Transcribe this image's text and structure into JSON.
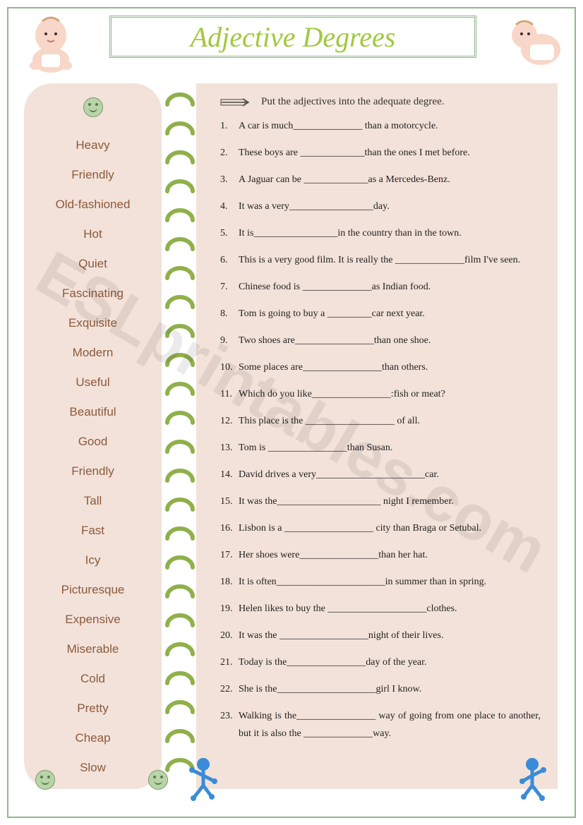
{
  "title": "Adjective Degrees",
  "colors": {
    "title": "#a0c93e",
    "border": "#8fb88a",
    "panel_bg": "#f3e2d9",
    "adj_text": "#8b5a3c",
    "ring": "#8fb04a"
  },
  "adjectives": [
    "Heavy",
    "Friendly",
    "Old-fashioned",
    "Hot",
    "Quiet",
    "Fascinating",
    "Exquisite",
    "Modern",
    "Useful",
    "Beautiful",
    "Good",
    "Friendly",
    "Tall",
    "Fast",
    "Icy",
    "Picturesque",
    "Expensive",
    "Miserable",
    "Cold",
    "Pretty",
    "Cheap",
    "Slow"
  ],
  "instruction": "Put the adjectives into the adequate degree.",
  "questions": [
    "A car is much______________ than a motorcycle.",
    "These boys are _____________than the ones I met before.",
    "A Jaguar can be _____________as a Mercedes-Benz.",
    "It was a very_________________day.",
    "It is_________________in the country than in the town.",
    "This is a very good film. It is really the ______________film I've seen.",
    "Chinese food is ______________as Indian food.",
    "Tom is going to buy a _________car next year.",
    "Two shoes are________________than one shoe.",
    "Some places are________________than others.",
    "Which do you like________________:fish or meat?",
    "This place is the __________________ of all.",
    "Tom is ________________than Susan.",
    "David drives a very______________________car.",
    "It was the_____________________ night I remember.",
    "Lisbon is a __________________ city than Braga or Setubal.",
    "Her shoes were________________than her hat.",
    "It is often______________________in summer than in spring.",
    "Helen likes to buy the ____________________clothes.",
    "It was the __________________night of their lives.",
    "Today is the________________day of the year.",
    "She is the____________________girl I know.",
    "Walking is the________________ way of going from one place to another, but it is also the ______________way."
  ],
  "watermark": "ESLprintables.com"
}
